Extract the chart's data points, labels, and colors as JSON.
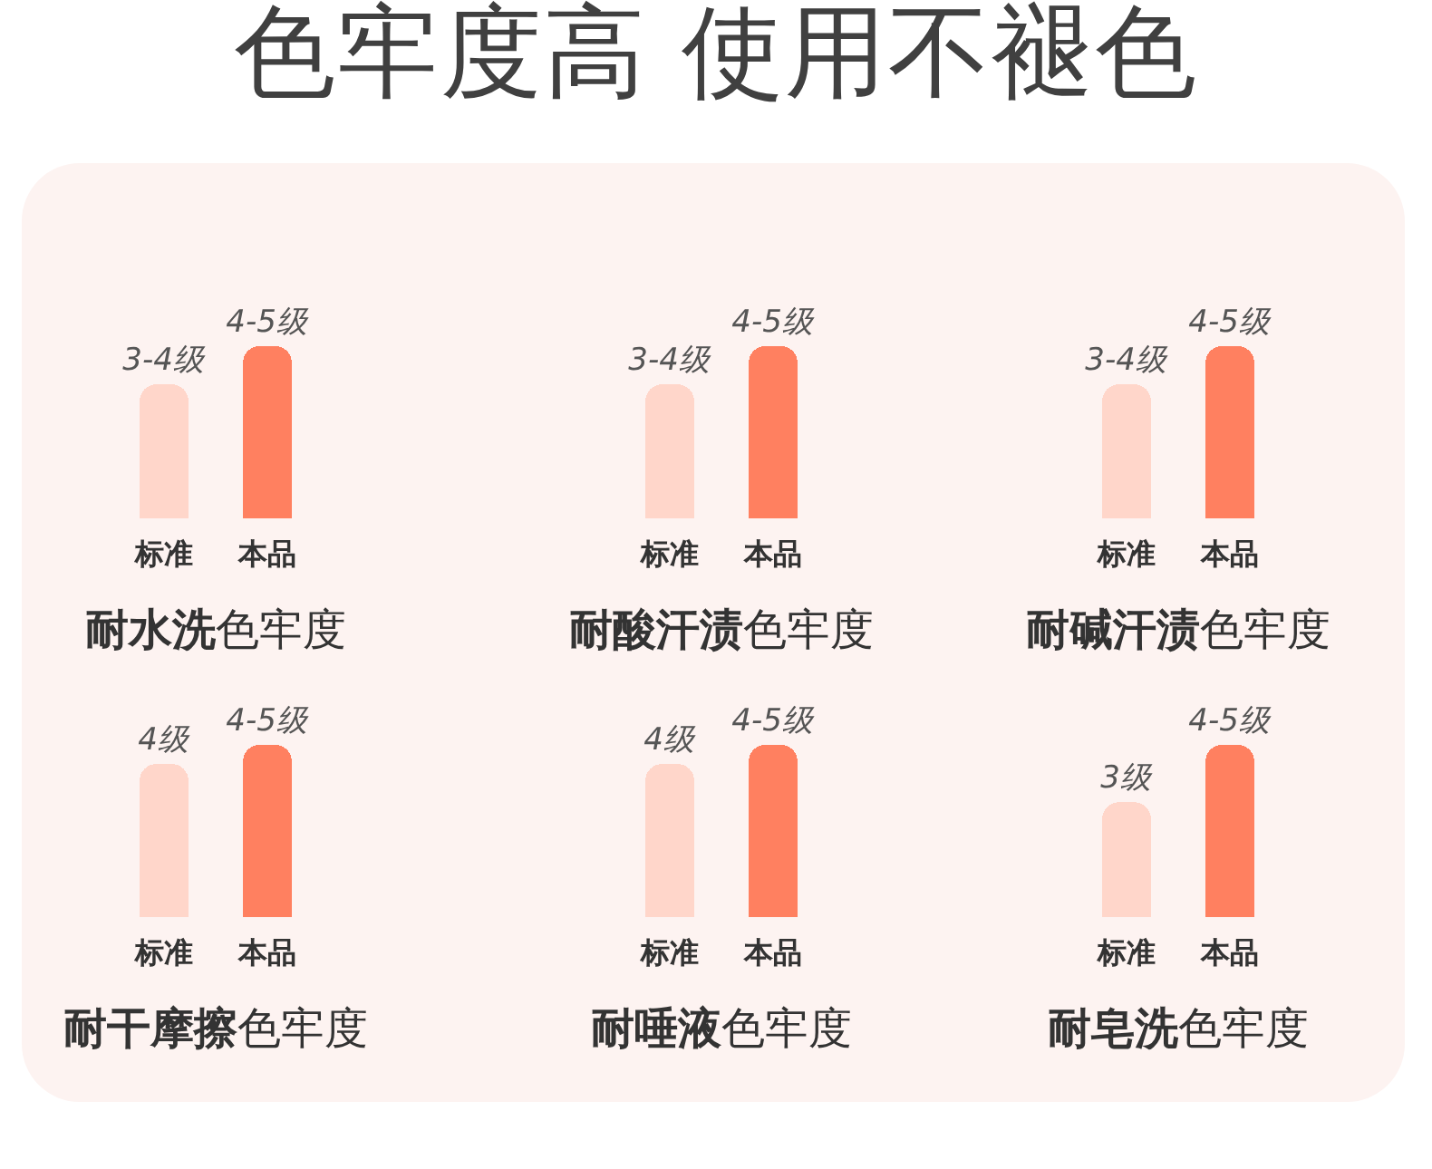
{
  "chart_data": [
    {
      "type": "bar",
      "categories": [
        "标准",
        "本品"
      ],
      "values": [
        3.5,
        4.5
      ],
      "colors": [
        "#ffd6ca",
        "#ff8060"
      ],
      "value_labels": [
        "3-4级",
        "4-5级"
      ],
      "xlabel": "耐水洗色牢度",
      "annotations": [
        "色牢度高 使用不褪色"
      ]
    },
    {
      "type": "bar",
      "categories": [
        "标准",
        "本品"
      ],
      "values": [
        3.5,
        4.5
      ],
      "colors": [
        "#ffd6ca",
        "#ff8060"
      ],
      "value_labels": [
        "3-4级",
        "4-5级"
      ],
      "xlabel": "耐酸汗渍色牢度"
    },
    {
      "type": "bar",
      "categories": [
        "标准",
        "本品"
      ],
      "values": [
        3.5,
        4.5
      ],
      "colors": [
        "#ffd6ca",
        "#ff8060"
      ],
      "value_labels": [
        "3-4级",
        "4-5级"
      ],
      "xlabel": "耐碱汗渍色牢度"
    },
    {
      "type": "bar",
      "categories": [
        "标准",
        "本品"
      ],
      "values": [
        4,
        4.5
      ],
      "colors": [
        "#ffd6ca",
        "#ff8060"
      ],
      "value_labels": [
        "4级",
        "4-5级"
      ],
      "xlabel": "耐干摩擦色牢度"
    },
    {
      "type": "bar",
      "categories": [
        "标准",
        "本品"
      ],
      "values": [
        4,
        4.5
      ],
      "colors": [
        "#ffd6ca",
        "#ff8060"
      ],
      "value_labels": [
        "4级",
        "4-5级"
      ],
      "xlabel": "耐唾液色牢度"
    },
    {
      "type": "bar",
      "categories": [
        "标准",
        "本品"
      ],
      "values": [
        3,
        4.5
      ],
      "colors": [
        "#ffd6ca",
        "#ff8060"
      ],
      "value_labels": [
        "3级",
        "4-5级"
      ],
      "xlabel": "耐皂洗色牢度"
    }
  ]
}
